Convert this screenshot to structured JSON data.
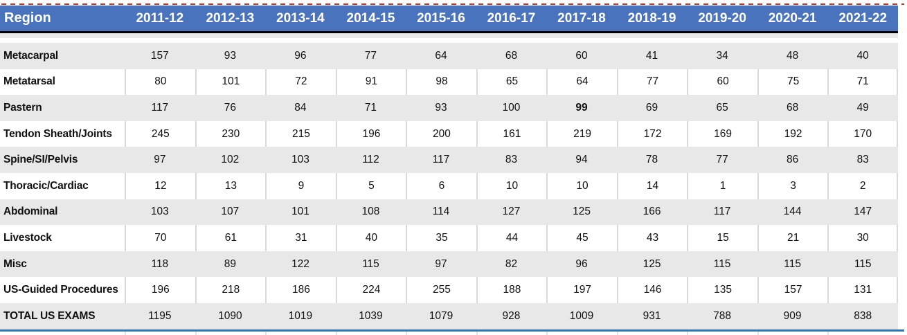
{
  "table": {
    "header": {
      "region_label": "Region",
      "years": [
        "2011-12",
        "2012-13",
        "2013-14",
        "2014-15",
        "2015-16",
        "2016-17",
        "2017-18",
        "2018-19",
        "2019-20",
        "2020-21",
        "2021-22"
      ]
    },
    "rows": [
      {
        "label": "Metacarpal",
        "values": [
          157,
          93,
          96,
          77,
          64,
          68,
          60,
          41,
          34,
          48,
          40
        ]
      },
      {
        "label": "Metatarsal",
        "values": [
          80,
          101,
          72,
          91,
          98,
          65,
          64,
          77,
          60,
          75,
          71
        ]
      },
      {
        "label": "Pastern",
        "values": [
          117,
          76,
          84,
          71,
          93,
          100,
          99,
          69,
          65,
          68,
          49
        ],
        "bold_value_index": 6
      },
      {
        "label": "Tendon Sheath/Joints",
        "values": [
          245,
          230,
          215,
          196,
          200,
          161,
          219,
          172,
          169,
          192,
          170
        ]
      },
      {
        "label": "Spine/SI/Pelvis",
        "values": [
          97,
          102,
          103,
          112,
          117,
          83,
          94,
          78,
          77,
          86,
          83
        ]
      },
      {
        "label": "Thoracic/Cardiac",
        "values": [
          12,
          13,
          9,
          5,
          6,
          10,
          10,
          14,
          1,
          3,
          2
        ]
      },
      {
        "label": "Abdominal",
        "values": [
          103,
          107,
          101,
          108,
          114,
          127,
          125,
          166,
          117,
          144,
          147
        ]
      },
      {
        "label": "Livestock",
        "values": [
          70,
          61,
          31,
          40,
          35,
          44,
          45,
          43,
          15,
          21,
          30
        ]
      },
      {
        "label": "Misc",
        "values": [
          118,
          89,
          122,
          115,
          97,
          82,
          96,
          125,
          115,
          115,
          115
        ]
      },
      {
        "label": "US-Guided Procedures",
        "values": [
          196,
          218,
          186,
          224,
          255,
          188,
          197,
          146,
          135,
          157,
          131
        ]
      },
      {
        "label": "TOTAL US EXAMS",
        "values": [
          1195,
          1090,
          1019,
          1039,
          1079,
          928,
          1009,
          931,
          788,
          909,
          838
        ],
        "is_total": true
      }
    ]
  },
  "colors": {
    "header_bg": "#4a73bd",
    "header_text": "#ffffff",
    "band_gray": "#e8e8e8",
    "grid_line": "#d9d9d9",
    "header_bottom_border": "#000000",
    "bottom_rule_blue": "#2e75b6",
    "page_break_red": "#d63426"
  }
}
